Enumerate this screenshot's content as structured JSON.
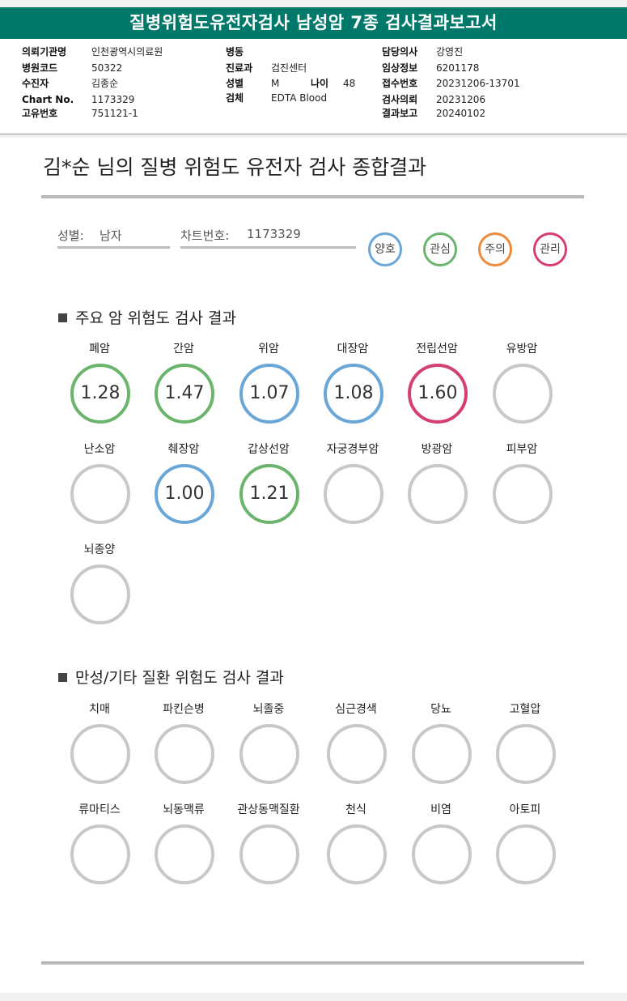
{
  "report_title": "질병위험도유전자검사 남성암 7종 검사결과보고서",
  "colors": {
    "header_bg": "#00796b",
    "good": "#6aa7d8",
    "interest": "#6ab56b",
    "caution": "#ee8a3b",
    "manage": "#d43f6e",
    "empty": "#c8c8c8"
  },
  "info": {
    "institution_label": "의뢰기관명",
    "institution": "인천광역시의료원",
    "hospital_code_label": "병원코드",
    "hospital_code": "50322",
    "patient_label": "수진자",
    "patient": "김종순",
    "chart_label": "Chart No.",
    "chart": "1173329",
    "unique_label": "고유번호",
    "unique": "751121-1",
    "ward_label": "병동",
    "ward": "",
    "dept_label": "진료과",
    "dept": "검진센터",
    "sex_label": "성별",
    "sex": "M",
    "age_label": "나이",
    "age": "48",
    "specimen_label": "검체",
    "specimen": "EDTA Blood",
    "doctor_label": "담당의사",
    "doctor": "강영진",
    "clinical_label": "임상정보",
    "clinical": "6201178",
    "receipt_label": "접수번호",
    "receipt": "20231206-13701",
    "request_label": "검사의뢰",
    "request": "20231206",
    "report_label": "결과보고",
    "report": "20240102"
  },
  "summary_title": "김*순 님의 질병 위험도 유전자 검사 종합결과",
  "fields": {
    "sex_label": "성별:",
    "sex_value": "남자",
    "chart_label": "차트번호:",
    "chart_value": "1173329"
  },
  "legend": [
    {
      "label": "양호",
      "level": "good"
    },
    {
      "label": "관심",
      "level": "interest"
    },
    {
      "label": "주의",
      "level": "caution"
    },
    {
      "label": "관리",
      "level": "manage"
    }
  ],
  "cancer_section": {
    "title": "주요 암 위험도 검사 결과",
    "items": [
      {
        "name": "폐암",
        "value": "1.28",
        "level": "interest"
      },
      {
        "name": "간암",
        "value": "1.47",
        "level": "interest"
      },
      {
        "name": "위암",
        "value": "1.07",
        "level": "good"
      },
      {
        "name": "대장암",
        "value": "1.08",
        "level": "good"
      },
      {
        "name": "전립선암",
        "value": "1.60",
        "level": "manage"
      },
      {
        "name": "유방암",
        "value": "",
        "level": "empty"
      },
      {
        "name": "난소암",
        "value": "",
        "level": "empty"
      },
      {
        "name": "췌장암",
        "value": "1.00",
        "level": "good"
      },
      {
        "name": "갑상선암",
        "value": "1.21",
        "level": "interest"
      },
      {
        "name": "자궁경부암",
        "value": "",
        "level": "empty"
      },
      {
        "name": "방광암",
        "value": "",
        "level": "empty"
      },
      {
        "name": "피부암",
        "value": "",
        "level": "empty"
      },
      {
        "name": "뇌종양",
        "value": "",
        "level": "empty"
      }
    ]
  },
  "chronic_section": {
    "title": "만성/기타 질환 위험도 검사 결과",
    "items": [
      {
        "name": "치매",
        "value": "",
        "level": "empty"
      },
      {
        "name": "파킨슨병",
        "value": "",
        "level": "empty"
      },
      {
        "name": "뇌졸중",
        "value": "",
        "level": "empty"
      },
      {
        "name": "심근경색",
        "value": "",
        "level": "empty"
      },
      {
        "name": "당뇨",
        "value": "",
        "level": "empty"
      },
      {
        "name": "고혈압",
        "value": "",
        "level": "empty"
      },
      {
        "name": "류마티스",
        "value": "",
        "level": "empty"
      },
      {
        "name": "뇌동맥류",
        "value": "",
        "level": "empty"
      },
      {
        "name": "관상동맥질환",
        "value": "",
        "level": "empty"
      },
      {
        "name": "천식",
        "value": "",
        "level": "empty"
      },
      {
        "name": "비염",
        "value": "",
        "level": "empty"
      },
      {
        "name": "아토피",
        "value": "",
        "level": "empty"
      }
    ]
  }
}
